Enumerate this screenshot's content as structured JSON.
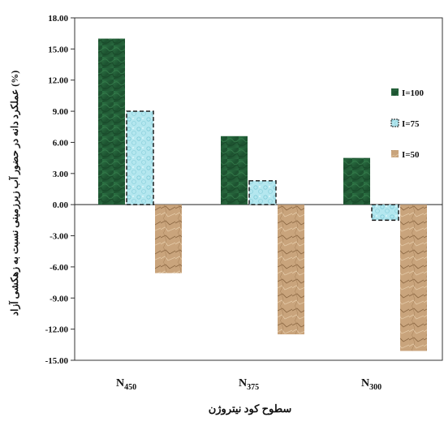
{
  "chart_data": {
    "type": "bar",
    "categories": [
      {
        "base": "N",
        "sub": "450"
      },
      {
        "base": "N",
        "sub": "375"
      },
      {
        "base": "N",
        "sub": "300"
      }
    ],
    "series": [
      {
        "name": "I=100",
        "values": [
          16.0,
          6.6,
          4.5
        ],
        "color": "#1f5a33",
        "pattern": "dark-green-texture"
      },
      {
        "name": "I=75",
        "values": [
          9.0,
          2.3,
          -1.5
        ],
        "color": "#a9e3ec",
        "pattern": "light-blue-texture"
      },
      {
        "name": "I=50",
        "values": [
          -6.6,
          -12.5,
          -14.1
        ],
        "color": "#c6a07a",
        "pattern": "crumpled-paper-texture"
      }
    ],
    "xlabel": "سطوح کود نیتروژن",
    "ylabel": "عملکرد دانه در حضور آب زیرزمینی نسبت به زهکشی آزاد (%)",
    "ylim": [
      -15,
      18
    ],
    "yticks": [
      "18.00",
      "15.00",
      "12.00",
      "9.00",
      "6.00",
      "3.00",
      "0.00",
      "-3.00",
      "-6.00",
      "-9.00",
      "-12.00",
      "-15.00"
    ],
    "legend_position": "right",
    "grid": false
  }
}
